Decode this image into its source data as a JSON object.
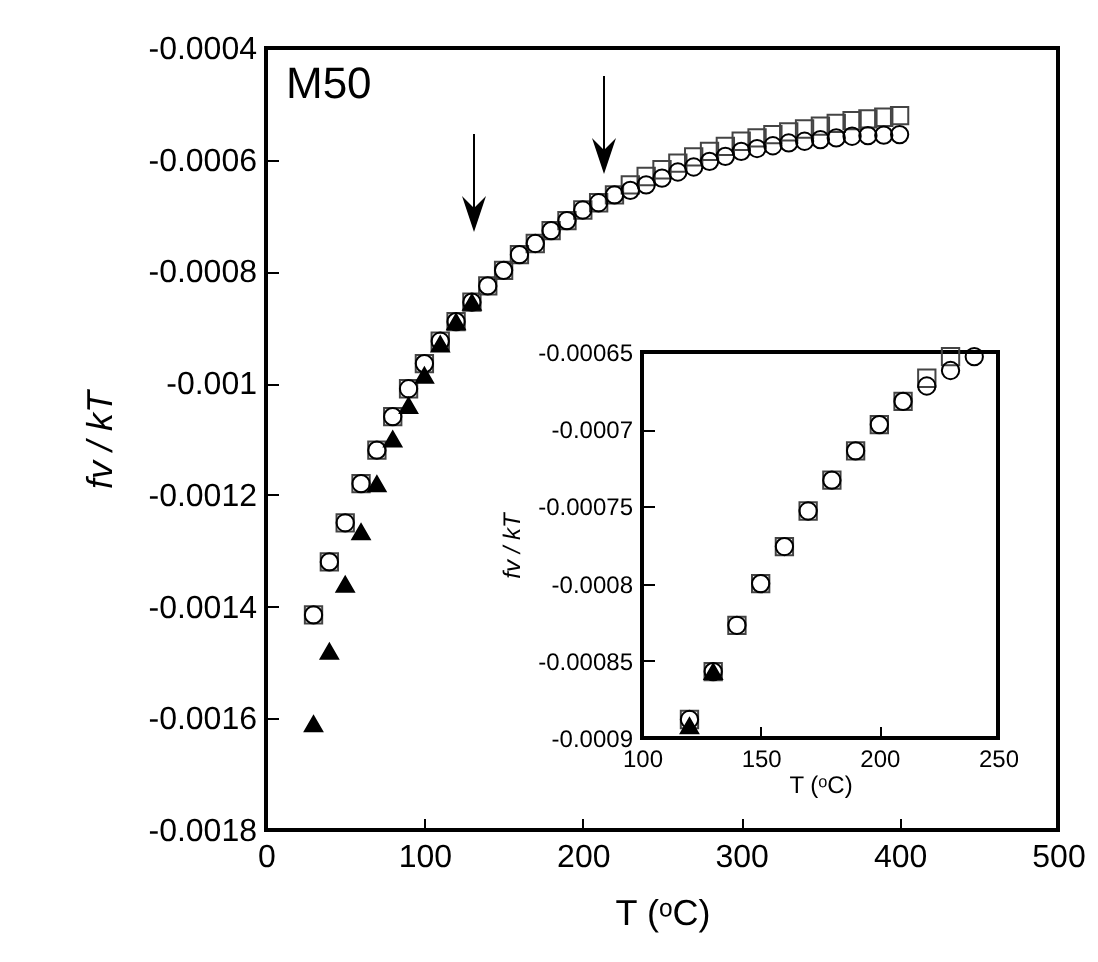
{
  "chart_data": [
    {
      "type": "scatter",
      "xlabel": "T (ᵒC)",
      "ylabel": "fv / kT",
      "xlim": [
        0,
        500
      ],
      "ylim": [
        -0.0018,
        -0.0004
      ],
      "xticks": [
        0,
        100,
        200,
        300,
        400,
        500
      ],
      "yticks": [
        -0.0018,
        -0.0016,
        -0.0014,
        -0.0012,
        -0.001,
        -0.0008,
        -0.0006,
        -0.0004
      ],
      "annotations": [
        "M50"
      ],
      "grid": false,
      "series": [
        {
          "marker": "square",
          "color": "#444444",
          "x": [
            30,
            40,
            50,
            60,
            70,
            80,
            90,
            100,
            110,
            120,
            130,
            140,
            150,
            160,
            170,
            180,
            190,
            200,
            210,
            220,
            230,
            240,
            250,
            260,
            270,
            280,
            290,
            300,
            310,
            320,
            330,
            340,
            350,
            360,
            370,
            380,
            390,
            400
          ],
          "values": [
            -0.001415,
            -0.00132,
            -0.00125,
            -0.00118,
            -0.00112,
            -0.00106,
            -0.00101,
            -0.000965,
            -0.000925,
            -0.00089,
            -0.000855,
            -0.000826,
            -0.000798,
            -0.00077,
            -0.00075,
            -0.000727,
            -0.000709,
            -0.00069,
            -0.000677,
            -0.000663,
            -0.000645,
            -0.00063,
            -0.000618,
            -0.000606,
            -0.000595,
            -0.000585,
            -0.000576,
            -0.000567,
            -0.000561,
            -0.000555,
            -0.00055,
            -0.000545,
            -0.00054,
            -0.000535,
            -0.00053,
            -0.000527,
            -0.000524,
            -0.000521
          ]
        },
        {
          "marker": "circle",
          "color": "#000000",
          "x": [
            30,
            40,
            50,
            60,
            70,
            80,
            90,
            100,
            110,
            120,
            130,
            140,
            150,
            160,
            170,
            180,
            190,
            200,
            210,
            220,
            230,
            240,
            250,
            260,
            270,
            280,
            290,
            300,
            310,
            320,
            330,
            340,
            350,
            360,
            370,
            380,
            390,
            400
          ],
          "values": [
            -0.001415,
            -0.00132,
            -0.00125,
            -0.00118,
            -0.00112,
            -0.00106,
            -0.00101,
            -0.000965,
            -0.000925,
            -0.00089,
            -0.000855,
            -0.000826,
            -0.000798,
            -0.00077,
            -0.00075,
            -0.000727,
            -0.000709,
            -0.00069,
            -0.000677,
            -0.000663,
            -0.000655,
            -0.000645,
            -0.000633,
            -0.000622,
            -0.000613,
            -0.000603,
            -0.000594,
            -0.000585,
            -0.00058,
            -0.000575,
            -0.00057,
            -0.000567,
            -0.000564,
            -0.000561,
            -0.000558,
            -0.000557,
            -0.000556,
            -0.000555
          ]
        },
        {
          "marker": "triangle",
          "color": "#000000",
          "x": [
            30,
            40,
            50,
            60,
            70,
            80,
            90,
            100,
            110,
            120,
            130
          ],
          "values": [
            -0.00161,
            -0.00148,
            -0.00136,
            -0.001266,
            -0.00118,
            -0.0011,
            -0.00104,
            -0.000986,
            -0.00093,
            -0.00089,
            -0.000855
          ]
        }
      ]
    },
    {
      "type": "scatter",
      "xlabel": "T (ᵒC)",
      "ylabel": "fv / kT",
      "xlim": [
        100,
        250
      ],
      "ylim": [
        -0.0009,
        -0.00065
      ],
      "xticks": [
        100,
        150,
        200,
        250
      ],
      "yticks": [
        -0.0009,
        -0.00085,
        -0.0008,
        -0.00075,
        -0.0007,
        -0.00065
      ],
      "grid": false,
      "series": [
        {
          "marker": "square",
          "color": "#444444",
          "x": [
            120,
            130,
            140,
            150,
            160,
            170,
            180,
            190,
            200,
            210,
            220,
            230
          ],
          "values": [
            -0.000888,
            -0.000857,
            -0.000827,
            -0.0008,
            -0.000776,
            -0.000753,
            -0.000733,
            -0.000714,
            -0.000697,
            -0.000682,
            -0.000667,
            -0.000653
          ]
        },
        {
          "marker": "circle",
          "color": "#000000",
          "x": [
            120,
            130,
            140,
            150,
            160,
            170,
            180,
            190,
            200,
            210,
            220,
            230,
            240
          ],
          "values": [
            -0.000888,
            -0.000857,
            -0.000827,
            -0.0008,
            -0.000776,
            -0.000753,
            -0.000733,
            -0.000714,
            -0.000697,
            -0.000682,
            -0.000672,
            -0.000662,
            -0.000653
          ]
        },
        {
          "marker": "triangle",
          "color": "#000000",
          "x": [
            120,
            130
          ],
          "values": [
            -0.000892,
            -0.000857
          ]
        }
      ]
    }
  ]
}
